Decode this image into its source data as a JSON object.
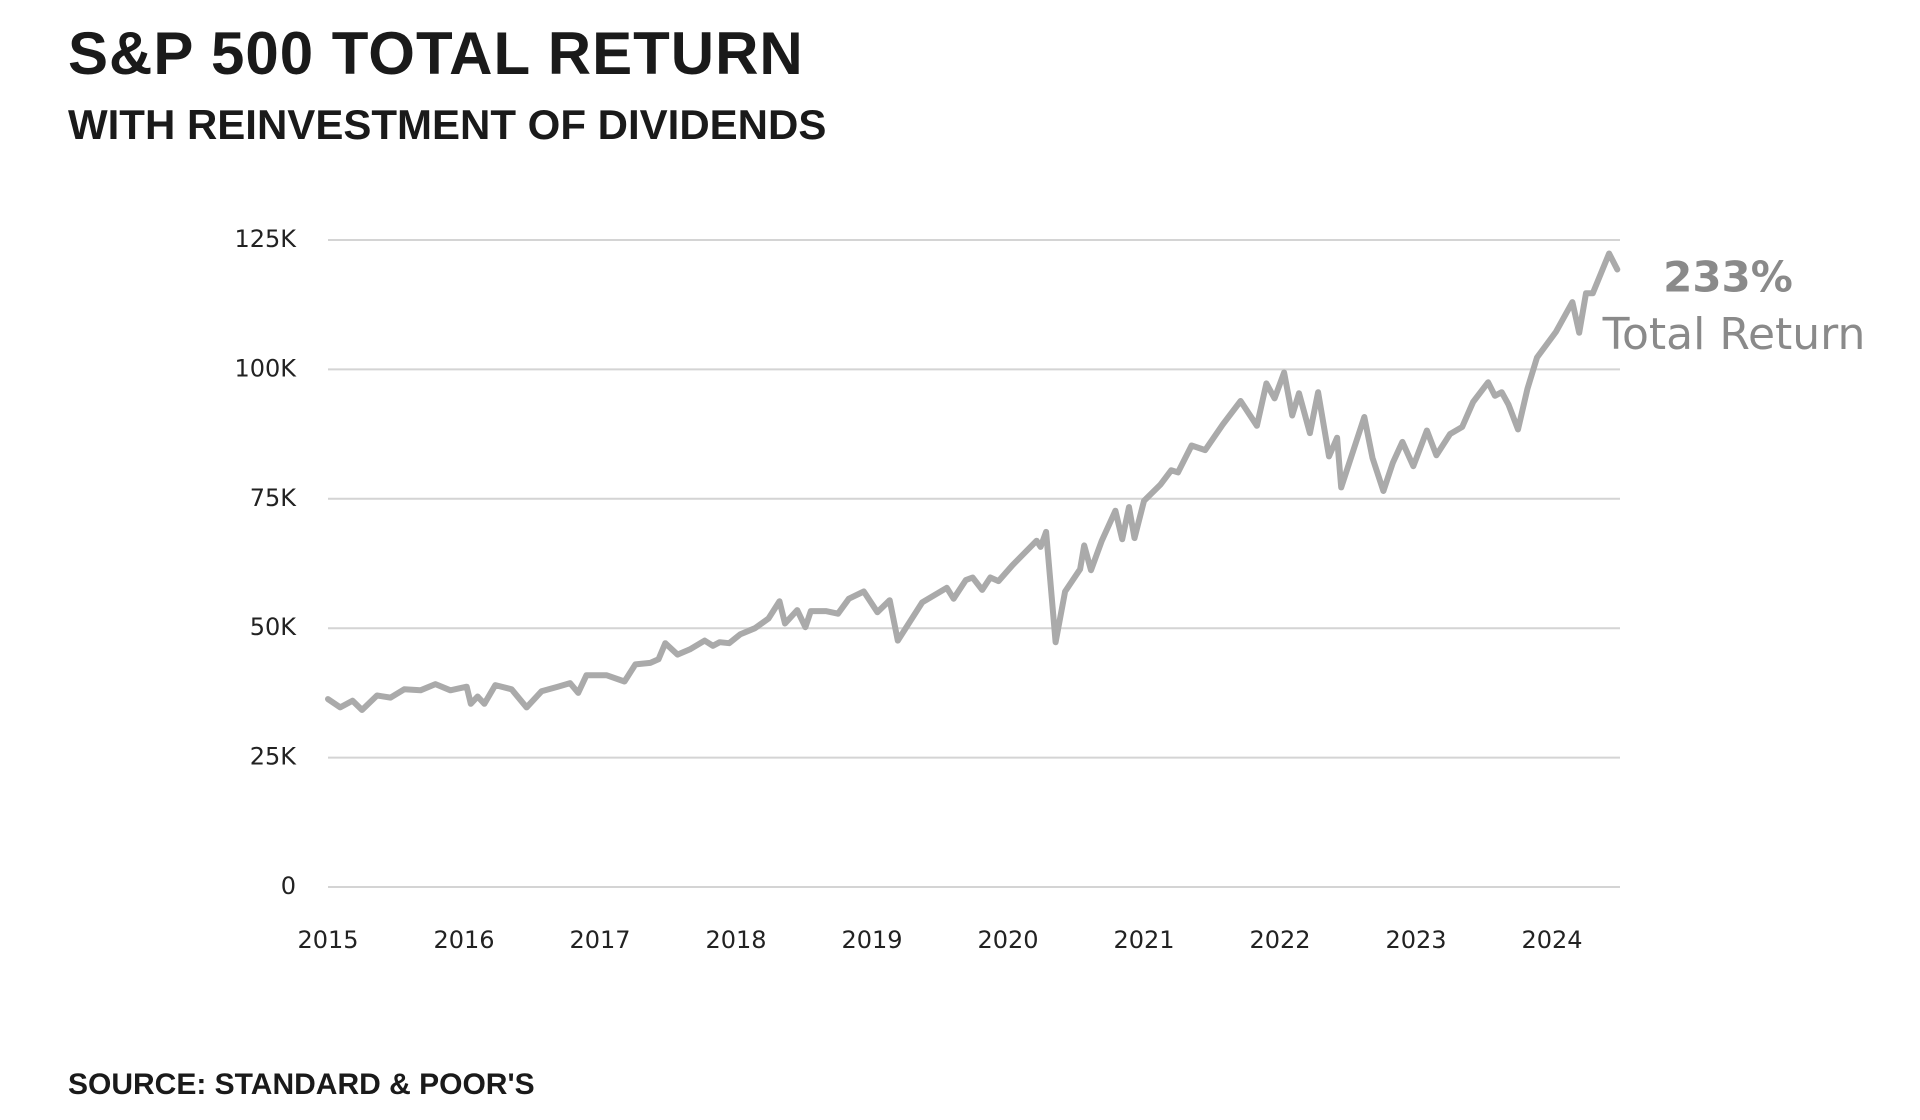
{
  "chart_data": {
    "type": "line",
    "title": "S&P 500 TOTAL RETURN",
    "subtitle": "WITH REINVESTMENT OF DIVIDENDS",
    "source": "SOURCE: STANDARD & POOR'S",
    "annotation": {
      "value_text": "233%",
      "text": "Total Return"
    },
    "color": "#aaaaaa",
    "grid": true,
    "xlim": [
      2015,
      2024.5
    ],
    "xticks": [
      2015,
      2016,
      2017,
      2018,
      2019,
      2020,
      2021,
      2022,
      2023,
      2024
    ],
    "ylim": [
      0,
      125000
    ],
    "yticks": [
      0,
      {
        "value": 25000,
        "label": "25K"
      },
      {
        "value": 50000,
        "label": "50K"
      },
      {
        "value": 75000,
        "label": "75K"
      },
      {
        "value": 100000,
        "label": "100K"
      },
      {
        "value": 125000,
        "label": "125K"
      }
    ],
    "x": [
      2015,
      2015.09,
      2015.18,
      2015.25,
      2015.36,
      2015.46,
      2015.56,
      2015.68,
      2015.79,
      2015.9,
      2016.02,
      2016.05,
      2016.1,
      2016.15,
      2016.23,
      2016.35,
      2016.46,
      2016.57,
      2016.69,
      2016.78,
      2016.84,
      2016.9,
      2017.05,
      2017.18,
      2017.26,
      2017.37,
      2017.43,
      2017.48,
      2017.57,
      2017.66,
      2017.77,
      2017.83,
      2017.88,
      2017.95,
      2018.03,
      2018.14,
      2018.24,
      2018.32,
      2018.36,
      2018.45,
      2018.51,
      2018.55,
      2018.66,
      2018.75,
      2018.83,
      2018.94,
      2019.04,
      2019.13,
      2019.19,
      2019.37,
      2019.55,
      2019.6,
      2019.69,
      2019.74,
      2019.81,
      2019.87,
      2019.93,
      2020.03,
      2020.21,
      2020.24,
      2020.28,
      2020.35,
      2020.42,
      2020.53,
      2020.56,
      2020.61,
      2020.69,
      2020.79,
      2020.84,
      2020.89,
      2020.93,
      2021,
      2021.12,
      2021.2,
      2021.25,
      2021.35,
      2021.45,
      2021.58,
      2021.71,
      2021.83,
      2021.9,
      2021.96,
      2022.03,
      2022.09,
      2022.14,
      2022.22,
      2022.28,
      2022.36,
      2022.42,
      2022.45,
      2022.62,
      2022.68,
      2022.76,
      2022.83,
      2022.9,
      2022.98,
      2023.08,
      2023.15,
      2023.25,
      2023.34,
      2023.42,
      2023.53,
      2023.58,
      2023.63,
      2023.68,
      2023.75,
      2023.82,
      2023.89,
      2024.03,
      2024.15,
      2024.2,
      2024.25,
      2024.3,
      2024.42,
      2024.48
    ],
    "values": [
      36300,
      34700,
      36000,
      34200,
      37000,
      36600,
      38200,
      38000,
      39200,
      38000,
      38700,
      35400,
      36800,
      35400,
      39000,
      38200,
      34700,
      37800,
      38700,
      39400,
      37500,
      40900,
      40900,
      39700,
      43000,
      43300,
      44000,
      47100,
      44900,
      45900,
      47600,
      46600,
      47300,
      47100,
      48800,
      50000,
      51900,
      55200,
      50900,
      53500,
      50200,
      53300,
      53300,
      52800,
      55700,
      57100,
      53100,
      55400,
      47600,
      55000,
      57800,
      55700,
      59300,
      59800,
      57400,
      59800,
      59100,
      62100,
      66900,
      65700,
      68600,
      47300,
      57100,
      61400,
      66000,
      61200,
      66900,
      72700,
      67200,
      73400,
      67400,
      74600,
      77700,
      80500,
      80100,
      85300,
      84400,
      89400,
      93900,
      89100,
      97300,
      94400,
      99400,
      91100,
      95400,
      87700,
      95600,
      83200,
      86800,
      77200,
      90800,
      82900,
      76500,
      82000,
      86000,
      81300,
      88200,
      83400,
      87500,
      88900,
      93700,
      97500,
      94900,
      95600,
      93200,
      88400,
      96300,
      102300,
      107300,
      113000,
      107100,
      114700,
      114700,
      122400,
      119300
    ]
  }
}
